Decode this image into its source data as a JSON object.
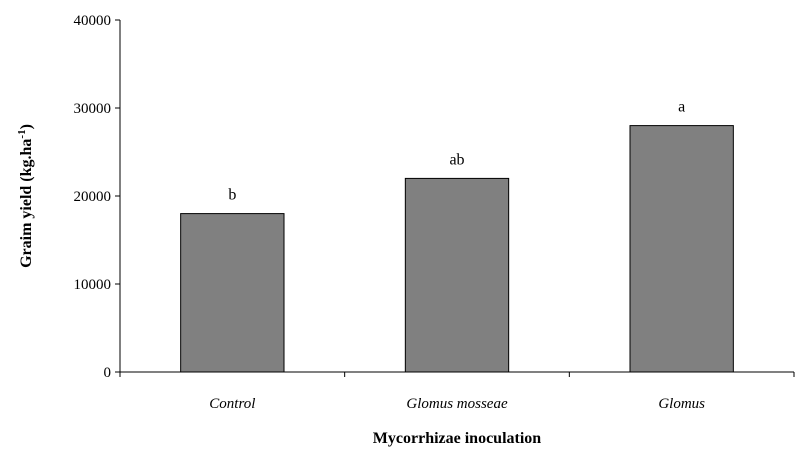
{
  "chart_data": {
    "type": "bar",
    "categories": [
      "Control",
      "Glomus mosseae",
      "Glomus"
    ],
    "values": [
      18000,
      22000,
      28000
    ],
    "data_labels": [
      "b",
      "ab",
      "a"
    ],
    "title": "",
    "xlabel": "Mycorrhizae inoculation",
    "ylabel": {
      "main": "Graim yield (kg.ha",
      "superscript": "-1",
      "close": ")"
    },
    "ylim": [
      0,
      40000
    ],
    "yticks": [
      "0",
      "10000",
      "20000",
      "30000",
      "40000"
    ],
    "grid": false,
    "legend": "none",
    "bar_color": "#808080",
    "bar_edge_color": "#000000"
  }
}
